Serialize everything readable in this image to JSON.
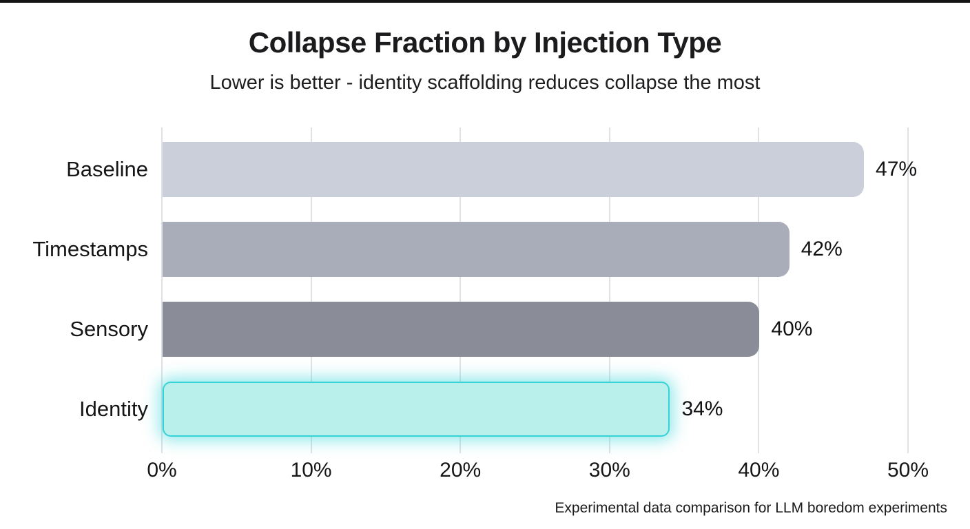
{
  "chart_data": {
    "type": "bar",
    "orientation": "horizontal",
    "title": "Collapse Fraction by Injection Type",
    "subtitle": "Lower is better - identity scaffolding reduces collapse the most",
    "categories": [
      "Baseline",
      "Timestamps",
      "Sensory",
      "Identity"
    ],
    "values": [
      47,
      42,
      40,
      34
    ],
    "value_labels": [
      "47%",
      "42%",
      "40%",
      "34%"
    ],
    "bar_colors": [
      "#cbcfda",
      "#a9adb9",
      "#8a8d97",
      "#b9f0eb"
    ],
    "highlight_index": 3,
    "highlight_border_color": "#35d3d6",
    "highlight_glow_color": "rgba(45, 214, 217, 0.5)",
    "x_ticks": [
      "0%",
      "10%",
      "20%",
      "30%",
      "40%",
      "50%"
    ],
    "x_max": 50,
    "xlabel": "",
    "ylabel": "",
    "grid": true,
    "gridline_color": "#e0e1e5",
    "legend": "none",
    "footer": "Experimental data comparison for LLM boredom experiments"
  }
}
